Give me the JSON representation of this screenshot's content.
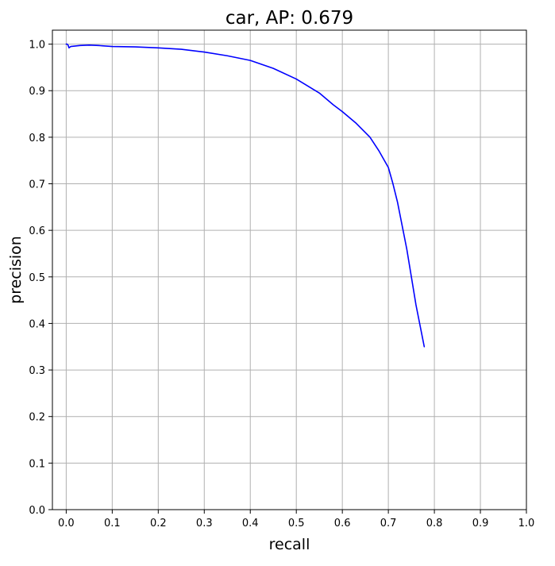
{
  "chart_data": {
    "type": "line",
    "title": "car, AP: 0.679",
    "xlabel": "recall",
    "ylabel": "precision",
    "xlim": [
      -0.03,
      1.0
    ],
    "ylim": [
      0.0,
      1.03
    ],
    "grid": true,
    "xticks": [
      0.0,
      0.1,
      0.2,
      0.3,
      0.4,
      0.5,
      0.6,
      0.7,
      0.8,
      0.9,
      1.0
    ],
    "xtick_labels": [
      "0.0",
      "0.1",
      "0.2",
      "0.3",
      "0.4",
      "0.5",
      "0.6",
      "0.7",
      "0.8",
      "0.9",
      "1.0"
    ],
    "yticks": [
      0.0,
      0.1,
      0.2,
      0.3,
      0.4,
      0.5,
      0.6,
      0.7,
      0.8,
      0.9,
      1.0
    ],
    "ytick_labels": [
      "0.0",
      "0.1",
      "0.2",
      "0.3",
      "0.4",
      "0.5",
      "0.6",
      "0.7",
      "0.8",
      "0.9",
      "1.0"
    ],
    "series": [
      {
        "color": "#0000ff",
        "x": [
          0.0,
          0.002,
          0.004,
          0.006,
          0.01,
          0.02,
          0.03,
          0.05,
          0.07,
          0.1,
          0.15,
          0.2,
          0.25,
          0.3,
          0.35,
          0.4,
          0.45,
          0.5,
          0.55,
          0.58,
          0.6,
          0.63,
          0.66,
          0.68,
          0.7,
          0.71,
          0.72,
          0.73,
          0.74,
          0.75,
          0.76,
          0.77,
          0.778
        ],
        "y": [
          1.0,
          1.0,
          0.998,
          0.992,
          0.995,
          0.996,
          0.997,
          0.998,
          0.997,
          0.995,
          0.994,
          0.992,
          0.989,
          0.983,
          0.975,
          0.965,
          0.948,
          0.925,
          0.895,
          0.87,
          0.855,
          0.83,
          0.8,
          0.77,
          0.735,
          0.7,
          0.66,
          0.61,
          0.56,
          0.5,
          0.44,
          0.39,
          0.35
        ]
      }
    ]
  }
}
